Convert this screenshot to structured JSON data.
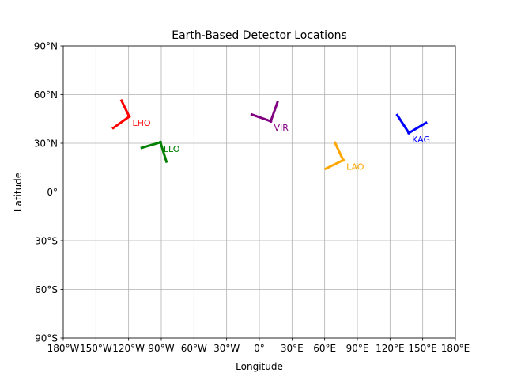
{
  "chart_data": {
    "type": "scatter",
    "title": "Earth-Based Detector Locations",
    "xlabel": "Longitude",
    "ylabel": "Latitude",
    "xlim": [
      -180,
      180
    ],
    "ylim": [
      -90,
      90
    ],
    "grid": true,
    "x_ticks": [
      {
        "value": -180,
        "label": "180°W"
      },
      {
        "value": -150,
        "label": "150°W"
      },
      {
        "value": -120,
        "label": "120°W"
      },
      {
        "value": -90,
        "label": "90°W"
      },
      {
        "value": -60,
        "label": "60°W"
      },
      {
        "value": -30,
        "label": "30°W"
      },
      {
        "value": 0,
        "label": "0°"
      },
      {
        "value": 30,
        "label": "30°E"
      },
      {
        "value": 60,
        "label": "60°E"
      },
      {
        "value": 90,
        "label": "90°E"
      },
      {
        "value": 120,
        "label": "120°E"
      },
      {
        "value": 150,
        "label": "150°E"
      },
      {
        "value": 180,
        "label": "180°E"
      }
    ],
    "y_ticks": [
      {
        "value": 90,
        "label": "90°N"
      },
      {
        "value": 60,
        "label": "60°N"
      },
      {
        "value": 30,
        "label": "30°N"
      },
      {
        "value": 0,
        "label": "0°"
      },
      {
        "value": -30,
        "label": "30°S"
      },
      {
        "value": -60,
        "label": "60°S"
      },
      {
        "value": -90,
        "label": "90°S"
      }
    ],
    "detectors": [
      {
        "name": "LHO",
        "color": "#ff0000",
        "lon": -119.4,
        "lat": 46.5,
        "arm_ends": [
          {
            "lon": -127,
            "lat": 57
          },
          {
            "lon": -135,
            "lat": 39
          }
        ]
      },
      {
        "name": "LLO",
        "color": "#008000",
        "lon": -90.8,
        "lat": 30.6,
        "arm_ends": [
          {
            "lon": -109,
            "lat": 27
          },
          {
            "lon": -85,
            "lat": 18
          }
        ]
      },
      {
        "name": "VIR",
        "color": "#800080",
        "lon": 10.5,
        "lat": 43.6,
        "arm_ends": [
          {
            "lon": -8,
            "lat": 48
          },
          {
            "lon": 17,
            "lat": 56
          }
        ]
      },
      {
        "name": "LAO",
        "color": "#ffa500",
        "lon": 77.0,
        "lat": 19.6,
        "arm_ends": [
          {
            "lon": 60,
            "lat": 14
          },
          {
            "lon": 69,
            "lat": 31
          }
        ]
      },
      {
        "name": "KAG",
        "color": "#0000ff",
        "lon": 137.3,
        "lat": 36.4,
        "arm_ends": [
          {
            "lon": 126,
            "lat": 48
          },
          {
            "lon": 154,
            "lat": 43
          }
        ]
      }
    ]
  }
}
